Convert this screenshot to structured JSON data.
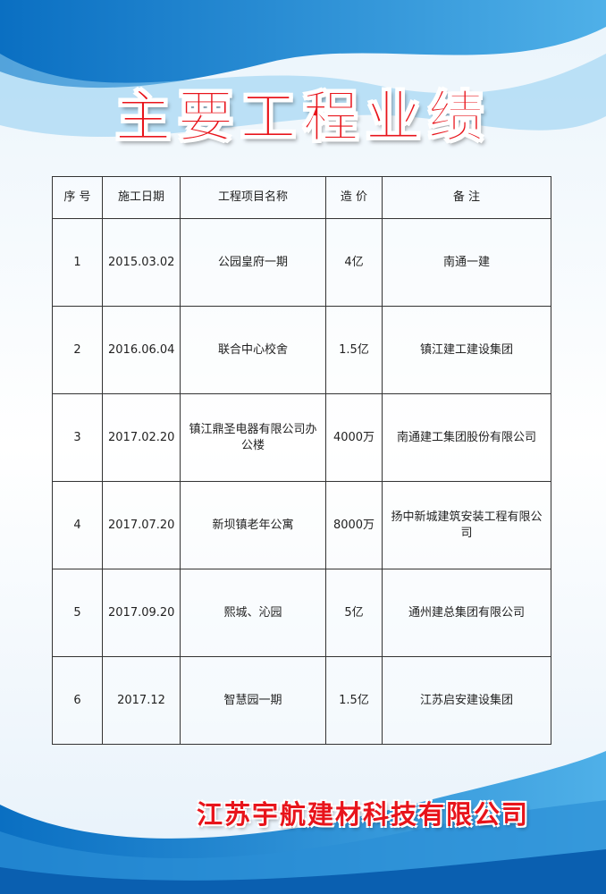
{
  "header": {
    "title": "主要工程业绩"
  },
  "table": {
    "columns": [
      "序 号",
      "施工日期",
      "工程项目名称",
      "造 价",
      "备 注"
    ],
    "rows": [
      [
        "1",
        "2015.03.02",
        "公园皇府一期",
        "4亿",
        "南通一建"
      ],
      [
        "2",
        "2016.06.04",
        "联合中心校舍",
        "1.5亿",
        "镇江建工建设集团"
      ],
      [
        "3",
        "2017.02.20",
        "镇江鼎圣电器有限公司办公楼",
        "4000万",
        "南通建工集团股份有限公司"
      ],
      [
        "4",
        "2017.07.20",
        "新坝镇老年公寓",
        "8000万",
        "扬中新城建筑安装工程有限公司"
      ],
      [
        "5",
        "2017.09.20",
        "熙城、沁园",
        "5亿",
        "通州建总集团有限公司"
      ],
      [
        "6",
        "2017.12",
        "智慧园一期",
        "1.5亿",
        "江苏启安建设集团"
      ]
    ]
  },
  "footer": {
    "company": "江苏宇航建材科技有限公司"
  }
}
